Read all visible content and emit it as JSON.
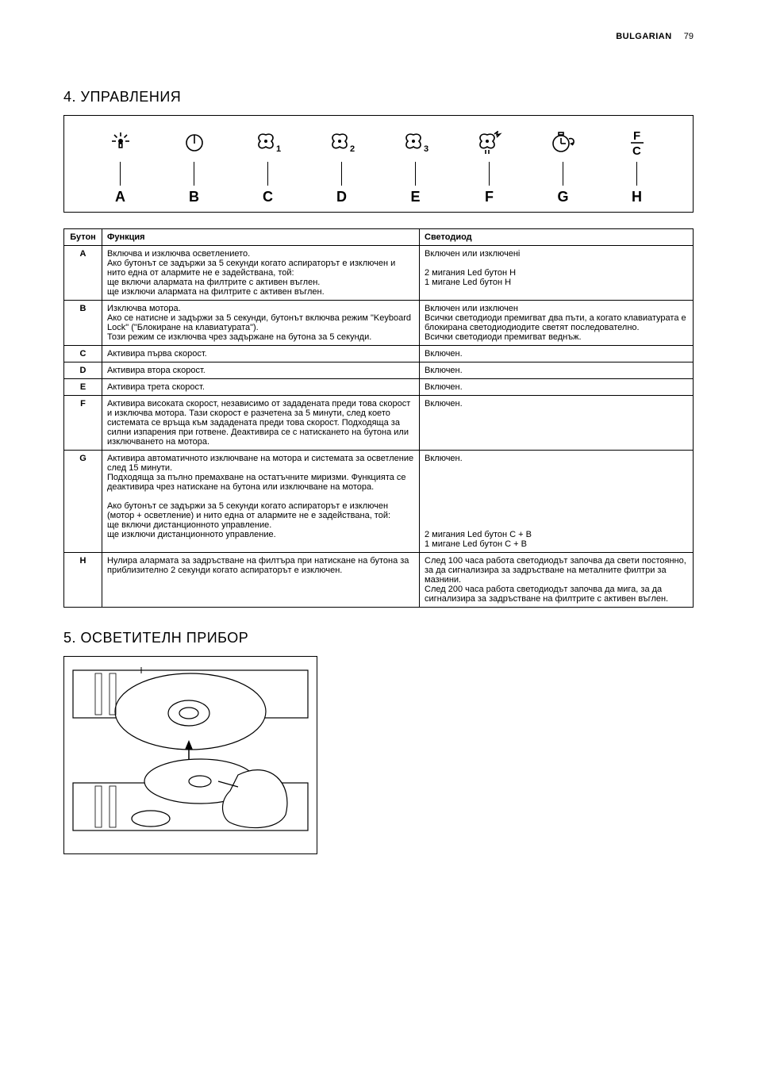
{
  "header": {
    "language": "BULGARIAN",
    "page_number": "79"
  },
  "section4": {
    "title": "4.  УПРАВЛЕНИЯ",
    "controls": [
      {
        "id": "A",
        "icon": "light"
      },
      {
        "id": "B",
        "icon": "power"
      },
      {
        "id": "C",
        "icon": "fan1"
      },
      {
        "id": "D",
        "icon": "fan2"
      },
      {
        "id": "E",
        "icon": "fan3"
      },
      {
        "id": "F",
        "icon": "fan-boost"
      },
      {
        "id": "G",
        "icon": "timer"
      },
      {
        "id": "H",
        "icon": "fc"
      }
    ],
    "table": {
      "headers": {
        "button": "Бутон",
        "function": "Функция",
        "led": "Светодиод"
      },
      "rows": [
        {
          "btn": "A",
          "func": "Включва и изключва осветлението.\nАко бутонът се задържи за 5 секунди когато аспираторът е изключен и нито една от алармите не е задействана, той:\nще включи алармата на филтрите с активен въглен.\nще изключи алармата на филтрите с активен въглен.",
          "led": "Включен или изключені\n\n2 мигания Led бутон H\n1 мигане Led бутон H"
        },
        {
          "btn": "B",
          "func": "Изключва мотора.\nАко се натисне и задържи за 5 секунди, бутонът включва режим \"Keyboard Lock\" (\"Блокиране на клавиатурата\").\nТози режим се изключва чрез задържане на бутона за 5 секунди.",
          "led": "Включен или изключен\nВсички светодиоди премигват два пъти, а когато клавиатурата е блокирана светодиодиодите светят последователно.\nВсички светодиоди премигват веднъж."
        },
        {
          "btn": "C",
          "func": "Активира първа скорост.",
          "led": "Включен."
        },
        {
          "btn": "D",
          "func": "Активира втора скорост.",
          "led": "Включен."
        },
        {
          "btn": "E",
          "func": "Активира трета скорост.",
          "led": "Включен."
        },
        {
          "btn": "F",
          "func": "Активира високата скорост, независимо от зададената преди това скорост и изключва мотора. Тази скорост е разчетена за 5 минути, след което системата се връща към зададената преди това скорост. Подходяща за силни изпарения при готвене. Деактивира се с натискането на бутона или изключването на мотора.",
          "led": "Включен."
        },
        {
          "btn": "G",
          "func": "Активира автоматичното изключване на мотора и системата за осветление след 15 минути.\nПодходяща за пълно премахване на остатъчните миризми. Функцията се деактивира чрез натискане на бутона или изключване на мотора.\n\nАко бутонът се задържи за 5 секунди когато аспираторът е изключен (мотор + осветление) и нито една от алармите не е задействана, той:\nще включи дистанционното управление.\nще изключи дистанционното управление.",
          "led": "Включен.\n\n\n\n\n\n\n\n2 мигания Led бутон C + B\n1 мигане Led бутон C + B"
        },
        {
          "btn": "H",
          "func": "Нулира алармата за задръстване на филтъра при натискане на бутона за приблизително 2 секунди когато аспираторът е изключен.",
          "led": "След 100 часа работа светодиодът започва да свети постоянно, за да сигнализира за задръстване на металните филтри за мазнини.\nСлед 200 часа работа светодиодът започва да мига, за да сигнализира за задръстване на филтрите с активен въглен."
        }
      ]
    }
  },
  "section5": {
    "title": "5.  ОСВЕТИТЕЛН ПРИБОР"
  }
}
